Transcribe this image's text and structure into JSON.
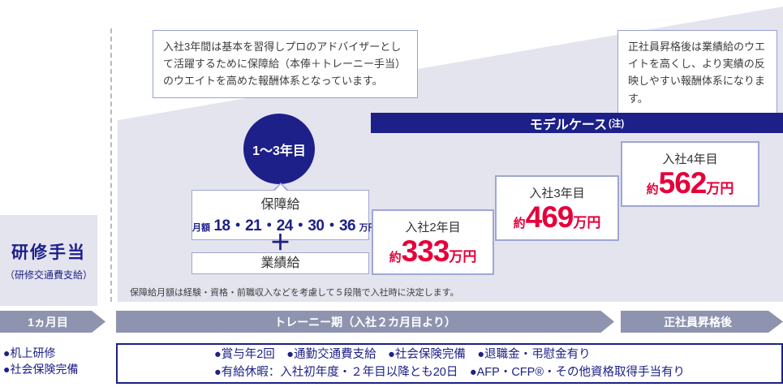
{
  "colors": {
    "navy": "#1d2088",
    "red": "#e5003a",
    "wedge_lavender": "#e4e4ef",
    "arrow_gray": "#8e93af",
    "box_border_purple": "#a0a6d2"
  },
  "callouts": {
    "trainee": "入社3年間は基本を習得しプロのアドバイザーとして活躍するために保障給（本俸＋トレーニー手当）のウエイトを高めた報酬体系となっています。",
    "fulltime": "正社員昇格後は業績給のウエイトを高くし、より実績の反映しやすい報酬体系になります。"
  },
  "banner": {
    "label": "モデルケース",
    "note": "(注)"
  },
  "badge": {
    "label": "1〜3年目"
  },
  "structure": {
    "guaranteed_title": "保障給",
    "monthly_label": "月額",
    "amounts": "18・21・24・30・36",
    "amounts_unit": "万円",
    "plus": "＋",
    "performance_title": "業績給",
    "note": "保障給月額は経験・資格・前職収入などを考慮して５段階で入社時に決定します。"
  },
  "cases": [
    {
      "year": "入社2年目",
      "approx": "約",
      "amount": "333",
      "unit": "万円"
    },
    {
      "year": "入社3年目",
      "approx": "約",
      "amount": "469",
      "unit": "万円"
    },
    {
      "year": "入社4年目",
      "approx": "約",
      "amount": "562",
      "unit": "万円"
    }
  ],
  "training": {
    "title": "研修手当",
    "subtitle": "（研修交通費支給）"
  },
  "timeline": [
    {
      "label": "1ヵ月目"
    },
    {
      "label": "トレーニー期（入社２カ月目より）"
    },
    {
      "label": "正社員昇格後"
    }
  ],
  "first_month": [
    "●机上研修",
    "●社会保険完備"
  ],
  "benefits": {
    "line1": "●賞与年2回　●通勤交通費支給　●社会保険完備　●退職金・弔慰金有り",
    "line2": "●有給休暇：入社初年度・２年目以降とも20日　●AFP・CFP®・その他資格取得手当有り"
  }
}
